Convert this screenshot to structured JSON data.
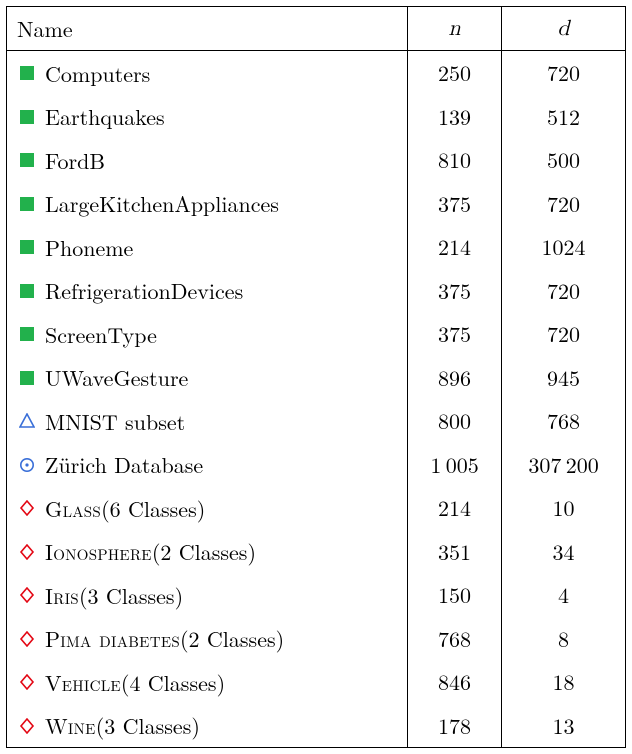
{
  "headers": {
    "name": "Name",
    "n": "n",
    "d": "d"
  },
  "colors": {
    "green": "#22b14c",
    "blue": "#3a6fd8",
    "red": "#e30613",
    "text": "#000000",
    "background": "#ffffff",
    "border": "#000000"
  },
  "icon_size": 16,
  "fontsize_pt": 17,
  "rows": [
    {
      "icon": "square",
      "icon_color": "#22b14c",
      "label": "Computers",
      "smallcaps": false,
      "suffix": "",
      "n": "250",
      "d": "720"
    },
    {
      "icon": "square",
      "icon_color": "#22b14c",
      "label": "Earthquakes",
      "smallcaps": false,
      "suffix": "",
      "n": "139",
      "d": "512"
    },
    {
      "icon": "square",
      "icon_color": "#22b14c",
      "label": "FordB",
      "smallcaps": false,
      "suffix": "",
      "n": "810",
      "d": "500"
    },
    {
      "icon": "square",
      "icon_color": "#22b14c",
      "label": "LargeKitchenAppliances",
      "smallcaps": false,
      "suffix": "",
      "n": "375",
      "d": "720"
    },
    {
      "icon": "square",
      "icon_color": "#22b14c",
      "label": "Phoneme",
      "smallcaps": false,
      "suffix": "",
      "n": "214",
      "d": "1024"
    },
    {
      "icon": "square",
      "icon_color": "#22b14c",
      "label": "RefrigerationDevices",
      "smallcaps": false,
      "suffix": "",
      "n": "375",
      "d": "720"
    },
    {
      "icon": "square",
      "icon_color": "#22b14c",
      "label": "ScreenType",
      "smallcaps": false,
      "suffix": "",
      "n": "375",
      "d": "720"
    },
    {
      "icon": "square",
      "icon_color": "#22b14c",
      "label": "UWaveGesture",
      "smallcaps": false,
      "suffix": "",
      "n": "896",
      "d": "945"
    },
    {
      "icon": "triangle",
      "icon_color": "#3a6fd8",
      "label": "MNIST subset",
      "smallcaps": false,
      "suffix": "",
      "n": "800",
      "d": "768"
    },
    {
      "icon": "circledot",
      "icon_color": "#3a6fd8",
      "label": "Zürich Database",
      "smallcaps": false,
      "suffix": "",
      "n": "1 005",
      "d": "307 200"
    },
    {
      "icon": "diamond",
      "icon_color": "#e30613",
      "label": "Glass",
      "smallcaps": true,
      "suffix": "  (6 Classes)",
      "n": "214",
      "d": "10"
    },
    {
      "icon": "diamond",
      "icon_color": "#e30613",
      "label": "Ionosphere",
      "smallcaps": true,
      "suffix": " (2 Classes)",
      "n": "351",
      "d": "34"
    },
    {
      "icon": "diamond",
      "icon_color": "#e30613",
      "label": "Iris",
      "smallcaps": true,
      "suffix": " (3 Classes)",
      "n": "150",
      "d": "4"
    },
    {
      "icon": "diamond",
      "icon_color": "#e30613",
      "label": "Pima diabetes",
      "smallcaps": true,
      "suffix": " (2 Classes)",
      "n": "768",
      "d": "8"
    },
    {
      "icon": "diamond",
      "icon_color": "#e30613",
      "label": "Vehicle",
      "smallcaps": true,
      "suffix": " (4 Classes)",
      "n": "846",
      "d": "18"
    },
    {
      "icon": "diamond",
      "icon_color": "#e30613",
      "label": "Wine",
      "smallcaps": true,
      "suffix": " (3 Classes)",
      "n": "178",
      "d": "13"
    }
  ]
}
